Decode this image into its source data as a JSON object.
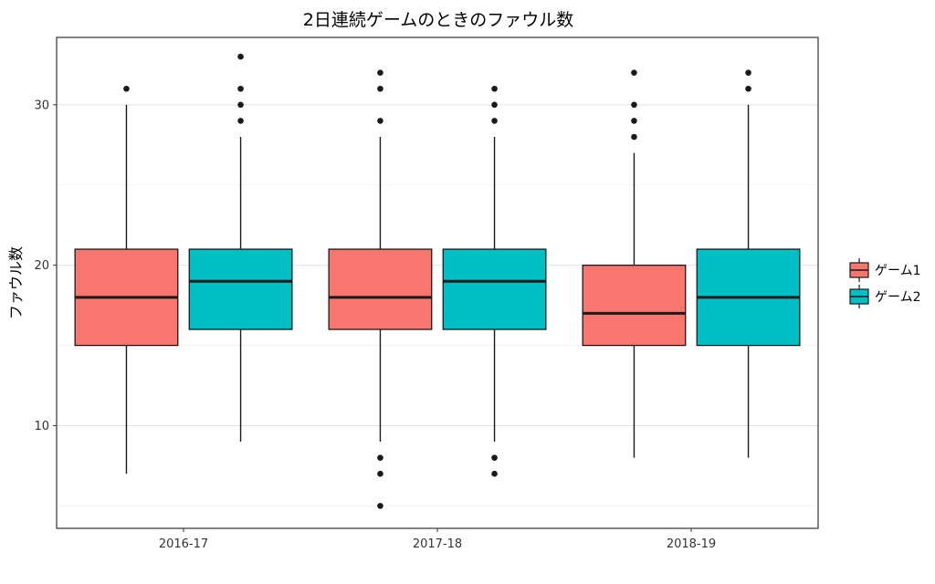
{
  "chart_data": {
    "type": "boxplot",
    "title": "2日連続ゲームのときのファウル数",
    "xlabel": "",
    "ylabel": "ファウル数",
    "ylim": [
      3.6,
      34.2
    ],
    "yticks": [
      10,
      20,
      30
    ],
    "grid": true,
    "legend_position": "right",
    "categories": [
      "2016-17",
      "2017-18",
      "2018-19"
    ],
    "series": [
      {
        "name": "ゲーム1",
        "color": "#F8766D",
        "boxes": [
          {
            "category": "2016-17",
            "whisker_low": 7,
            "q1": 15,
            "median": 18,
            "q3": 21,
            "whisker_high": 30,
            "outliers": [
              31
            ]
          },
          {
            "category": "2017-18",
            "whisker_low": 9,
            "q1": 16,
            "median": 18,
            "q3": 21,
            "whisker_high": 28,
            "outliers": [
              5,
              7,
              8,
              29,
              31,
              32
            ]
          },
          {
            "category": "2018-19",
            "whisker_low": 8,
            "q1": 15,
            "median": 17,
            "q3": 20,
            "whisker_high": 27,
            "outliers": [
              28,
              29,
              30,
              32
            ]
          }
        ]
      },
      {
        "name": "ゲーム2",
        "color": "#00BFC4",
        "boxes": [
          {
            "category": "2016-17",
            "whisker_low": 9,
            "q1": 16,
            "median": 19,
            "q3": 21,
            "whisker_high": 28,
            "outliers": [
              29,
              30,
              31,
              33
            ]
          },
          {
            "category": "2017-18",
            "whisker_low": 9,
            "q1": 16,
            "median": 19,
            "q3": 21,
            "whisker_high": 28,
            "outliers": [
              7,
              8,
              29,
              30,
              31
            ]
          },
          {
            "category": "2018-19",
            "whisker_low": 8,
            "q1": 15,
            "median": 18,
            "q3": 21,
            "whisker_high": 30,
            "outliers": [
              31,
              32
            ]
          }
        ]
      }
    ]
  }
}
